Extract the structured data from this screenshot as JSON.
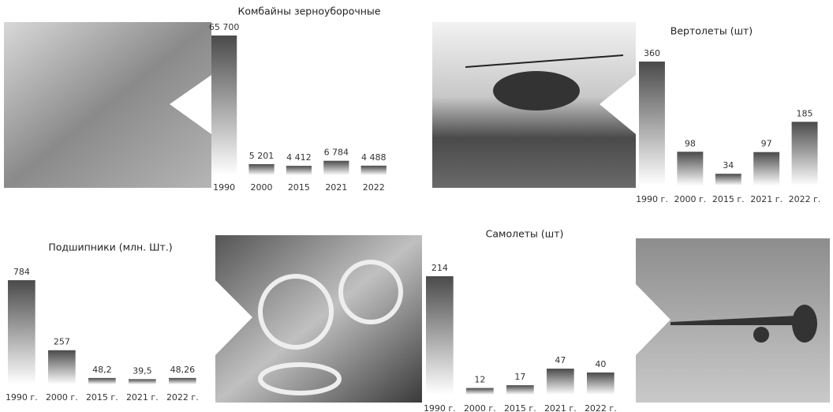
{
  "chart_data": [
    {
      "type": "bar",
      "title": "Комбайны зерноуборочные",
      "categories": [
        "1990",
        "2000",
        "2015",
        "2021",
        "2022"
      ],
      "values": [
        65700,
        5201,
        4412,
        6784,
        4488
      ],
      "value_labels": [
        "65 700",
        "5 201",
        "4 412",
        "6 784",
        "4 488"
      ],
      "color": "#4a4a4a"
    },
    {
      "type": "bar",
      "title": "Вертолеты (шт)",
      "categories": [
        "1990 г.",
        "2000 г.",
        "2015 г.",
        "2021 г.",
        "2022 г."
      ],
      "values": [
        360,
        98,
        34,
        97,
        185
      ],
      "color": "#4a4a4a"
    },
    {
      "type": "bar",
      "title": "Подшипники (млн. Шт.)",
      "categories": [
        "1990 г.",
        "2000 г.",
        "2015 г.",
        "2021 г.",
        "2022 г."
      ],
      "values": [
        784,
        257,
        48.2,
        39.5,
        48.26
      ],
      "value_labels": [
        "784",
        "257",
        "48,2",
        "39,5",
        "48,26"
      ],
      "color": "#4a4a4a"
    },
    {
      "type": "bar",
      "title": "Самолеты (шт)",
      "categories": [
        "1990 г.",
        "2000 г.",
        "2015 г.",
        "2021 г.",
        "2022 г."
      ],
      "values": [
        214,
        12,
        17,
        47,
        40
      ],
      "color": "#4a4a4a"
    }
  ]
}
